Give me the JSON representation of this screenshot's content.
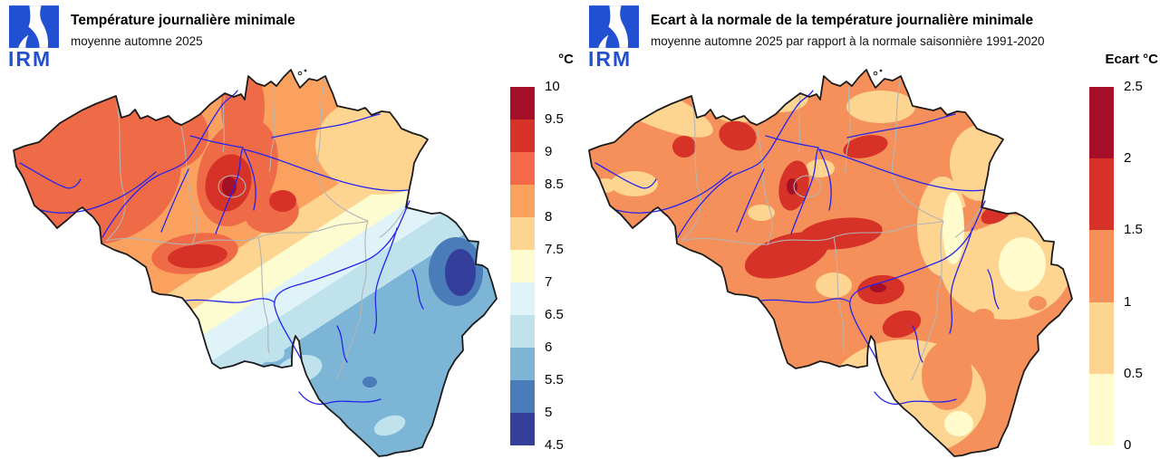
{
  "logo": {
    "text": "IRM",
    "color": "#2151d2"
  },
  "left_panel": {
    "title": "Température journalière minimale",
    "subtitle": "moyenne automne 2025",
    "legend": {
      "title": "°C",
      "ticks": [
        "10",
        "9.5",
        "9",
        "8.5",
        "8",
        "7.5",
        "7",
        "6.5",
        "6",
        "5.5",
        "5",
        "4.5"
      ],
      "colors": [
        "#a50f28",
        "#d73227",
        "#f4694a",
        "#fba35e",
        "#fdd591",
        "#fdfbd0",
        "#e0f3f8",
        "#bfe2ed",
        "#7cb5d6",
        "#4a7cba",
        "#343e9b"
      ]
    }
  },
  "right_panel": {
    "title": "Ecart à la normale de la température journalière minimale",
    "subtitle": "moyenne automne 2025 par rapport à la normale saisonnière 1991-2020",
    "legend": {
      "title": "Ecart °C",
      "ticks": [
        "2.5",
        "2",
        "1.5",
        "1",
        "0.5",
        "0"
      ],
      "colors": [
        "#a50f28",
        "#d73227",
        "#f6905b",
        "#fdd591",
        "#fffbcc"
      ]
    }
  },
  "map_style": {
    "border_color": "#1b1b1b",
    "province_border_color": "#b4b4b4",
    "river_color": "#2424ef"
  }
}
